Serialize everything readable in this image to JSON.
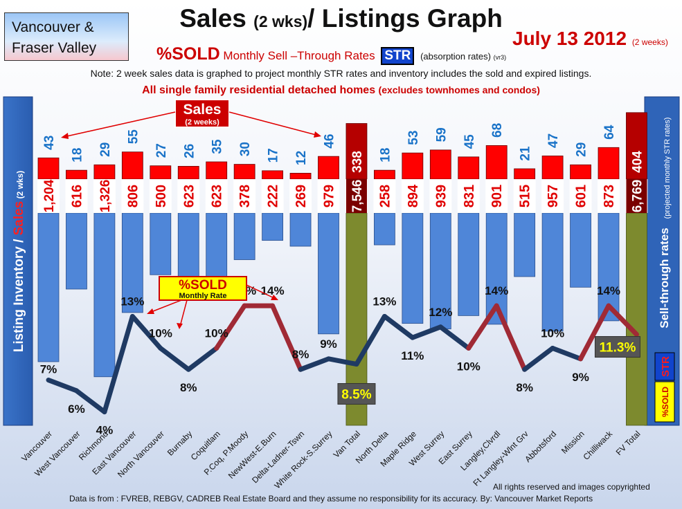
{
  "header": {
    "region_line1": "Vancouver &",
    "region_line2": "Fraser Valley",
    "title_main": "Sales ",
    "title_small": "(2 wks)",
    "title_end": "/ Listings Graph",
    "date_big": "July 13 2012",
    "date_small": "(2 weeks)",
    "sub_sold": "%SOLD",
    "sub_rest": " Monthly Sell –Through Rates ",
    "sub_str": "STR",
    "sub_abs": "(absorption rates)",
    "sub_vr": "(vr3)",
    "note": "Note: 2 week sales data is graphed to project monthly STR rates and inventory includes the sold and expired listings.",
    "detached_main": "All single family residential detached homes ",
    "detached_sub": "(excludes townhomes and condos)"
  },
  "callouts": {
    "sales": "Sales",
    "sales_sub": "(2 weeks)",
    "sold": "%SOLD",
    "sold_sub": "Monthly Rate"
  },
  "side": {
    "left_a": "Listing Inventory / ",
    "left_b": "Sales",
    "left_c": " (2  wks)",
    "right_main": "Sell-through rates",
    "right_sub": "(projected monthly STR rates)",
    "str": "STR",
    "sold": "%SOLD"
  },
  "footer": {
    "rights": "All rights reserved and  images copyrighted",
    "source": "Data is from : FVREB, REBGV, CADREB Real Estate Board and they assume no responsibility for its accuracy. By: Vancouver Market Reports"
  },
  "colors": {
    "sales": "#ff0000",
    "sales_total": "#b50000",
    "inventory": "#4f86d8",
    "total": "#7d8a2e",
    "line": "#1f3a63",
    "line_peak": "#a02a35",
    "sales_label": "#1a73c8",
    "inventory_label": "#e00000"
  },
  "chart_data": {
    "type": "bar",
    "categories": [
      "Vancouver",
      "West Vancouver",
      "Richmond",
      "East Vancouver",
      "North Vancouver",
      "Burnaby",
      "Coquitlam",
      "P.Coq, P.Moody",
      "NewWest-E.Burn",
      "Delta-Ladner-Tswn",
      "White Rock-S.Surrey",
      "Van Total",
      "North Delta",
      "Maple Ridge",
      "West Surrey",
      "East Surrey",
      "Langley,Clvrdl",
      "Ft Langley-Wlnt Grv",
      "Abbotsford",
      "Mission",
      "Chilliwack",
      "FV Total"
    ],
    "series": [
      {
        "name": "Sales",
        "values": [
          43,
          18,
          29,
          55,
          27,
          26,
          35,
          30,
          17,
          12,
          46,
          338,
          18,
          53,
          59,
          45,
          68,
          21,
          47,
          29,
          64,
          404
        ],
        "labels": [
          "43",
          "18",
          "29",
          "55",
          "27",
          "26",
          "35",
          "30",
          "17",
          "12",
          "46",
          "338",
          "18",
          "53",
          "59",
          "45",
          "68",
          "21",
          "47",
          "29",
          "64",
          "404"
        ]
      },
      {
        "name": "Listing Inventory",
        "values": [
          1204,
          616,
          1326,
          806,
          500,
          623,
          623,
          378,
          222,
          269,
          979,
          7546,
          258,
          894,
          939,
          831,
          901,
          515,
          957,
          601,
          873,
          6769
        ],
        "labels": [
          "1,204",
          "616",
          "1,326",
          "806",
          "500",
          "623",
          "623",
          "378",
          "222",
          "269",
          "979",
          "7,546",
          "258",
          "894",
          "939",
          "831",
          "901",
          "515",
          "957",
          "601",
          "873",
          "6,769"
        ]
      },
      {
        "name": "%SOLD",
        "values": [
          7,
          6,
          4,
          13,
          10,
          8,
          10,
          14,
          14,
          8,
          9,
          8.5,
          13,
          11,
          12,
          10,
          14,
          8,
          10,
          9,
          14,
          11.3
        ],
        "labels": [
          "7%",
          "6%",
          "4%",
          "13%",
          "10%",
          "8%",
          "10%",
          "14%",
          "14%",
          "8%",
          "9%",
          "8.5%",
          "13%",
          "11%",
          "12%",
          "10%",
          "14%",
          "8%",
          "10%",
          "9%",
          "14%",
          "11.3%"
        ]
      }
    ],
    "totals_index": [
      11,
      21
    ],
    "title": "Sales (2 wks)/ Listings Graph",
    "ylabel": "Listing Inventory / Sales (2  wks)",
    "y2label": "Sell-through rates",
    "grid": false
  }
}
